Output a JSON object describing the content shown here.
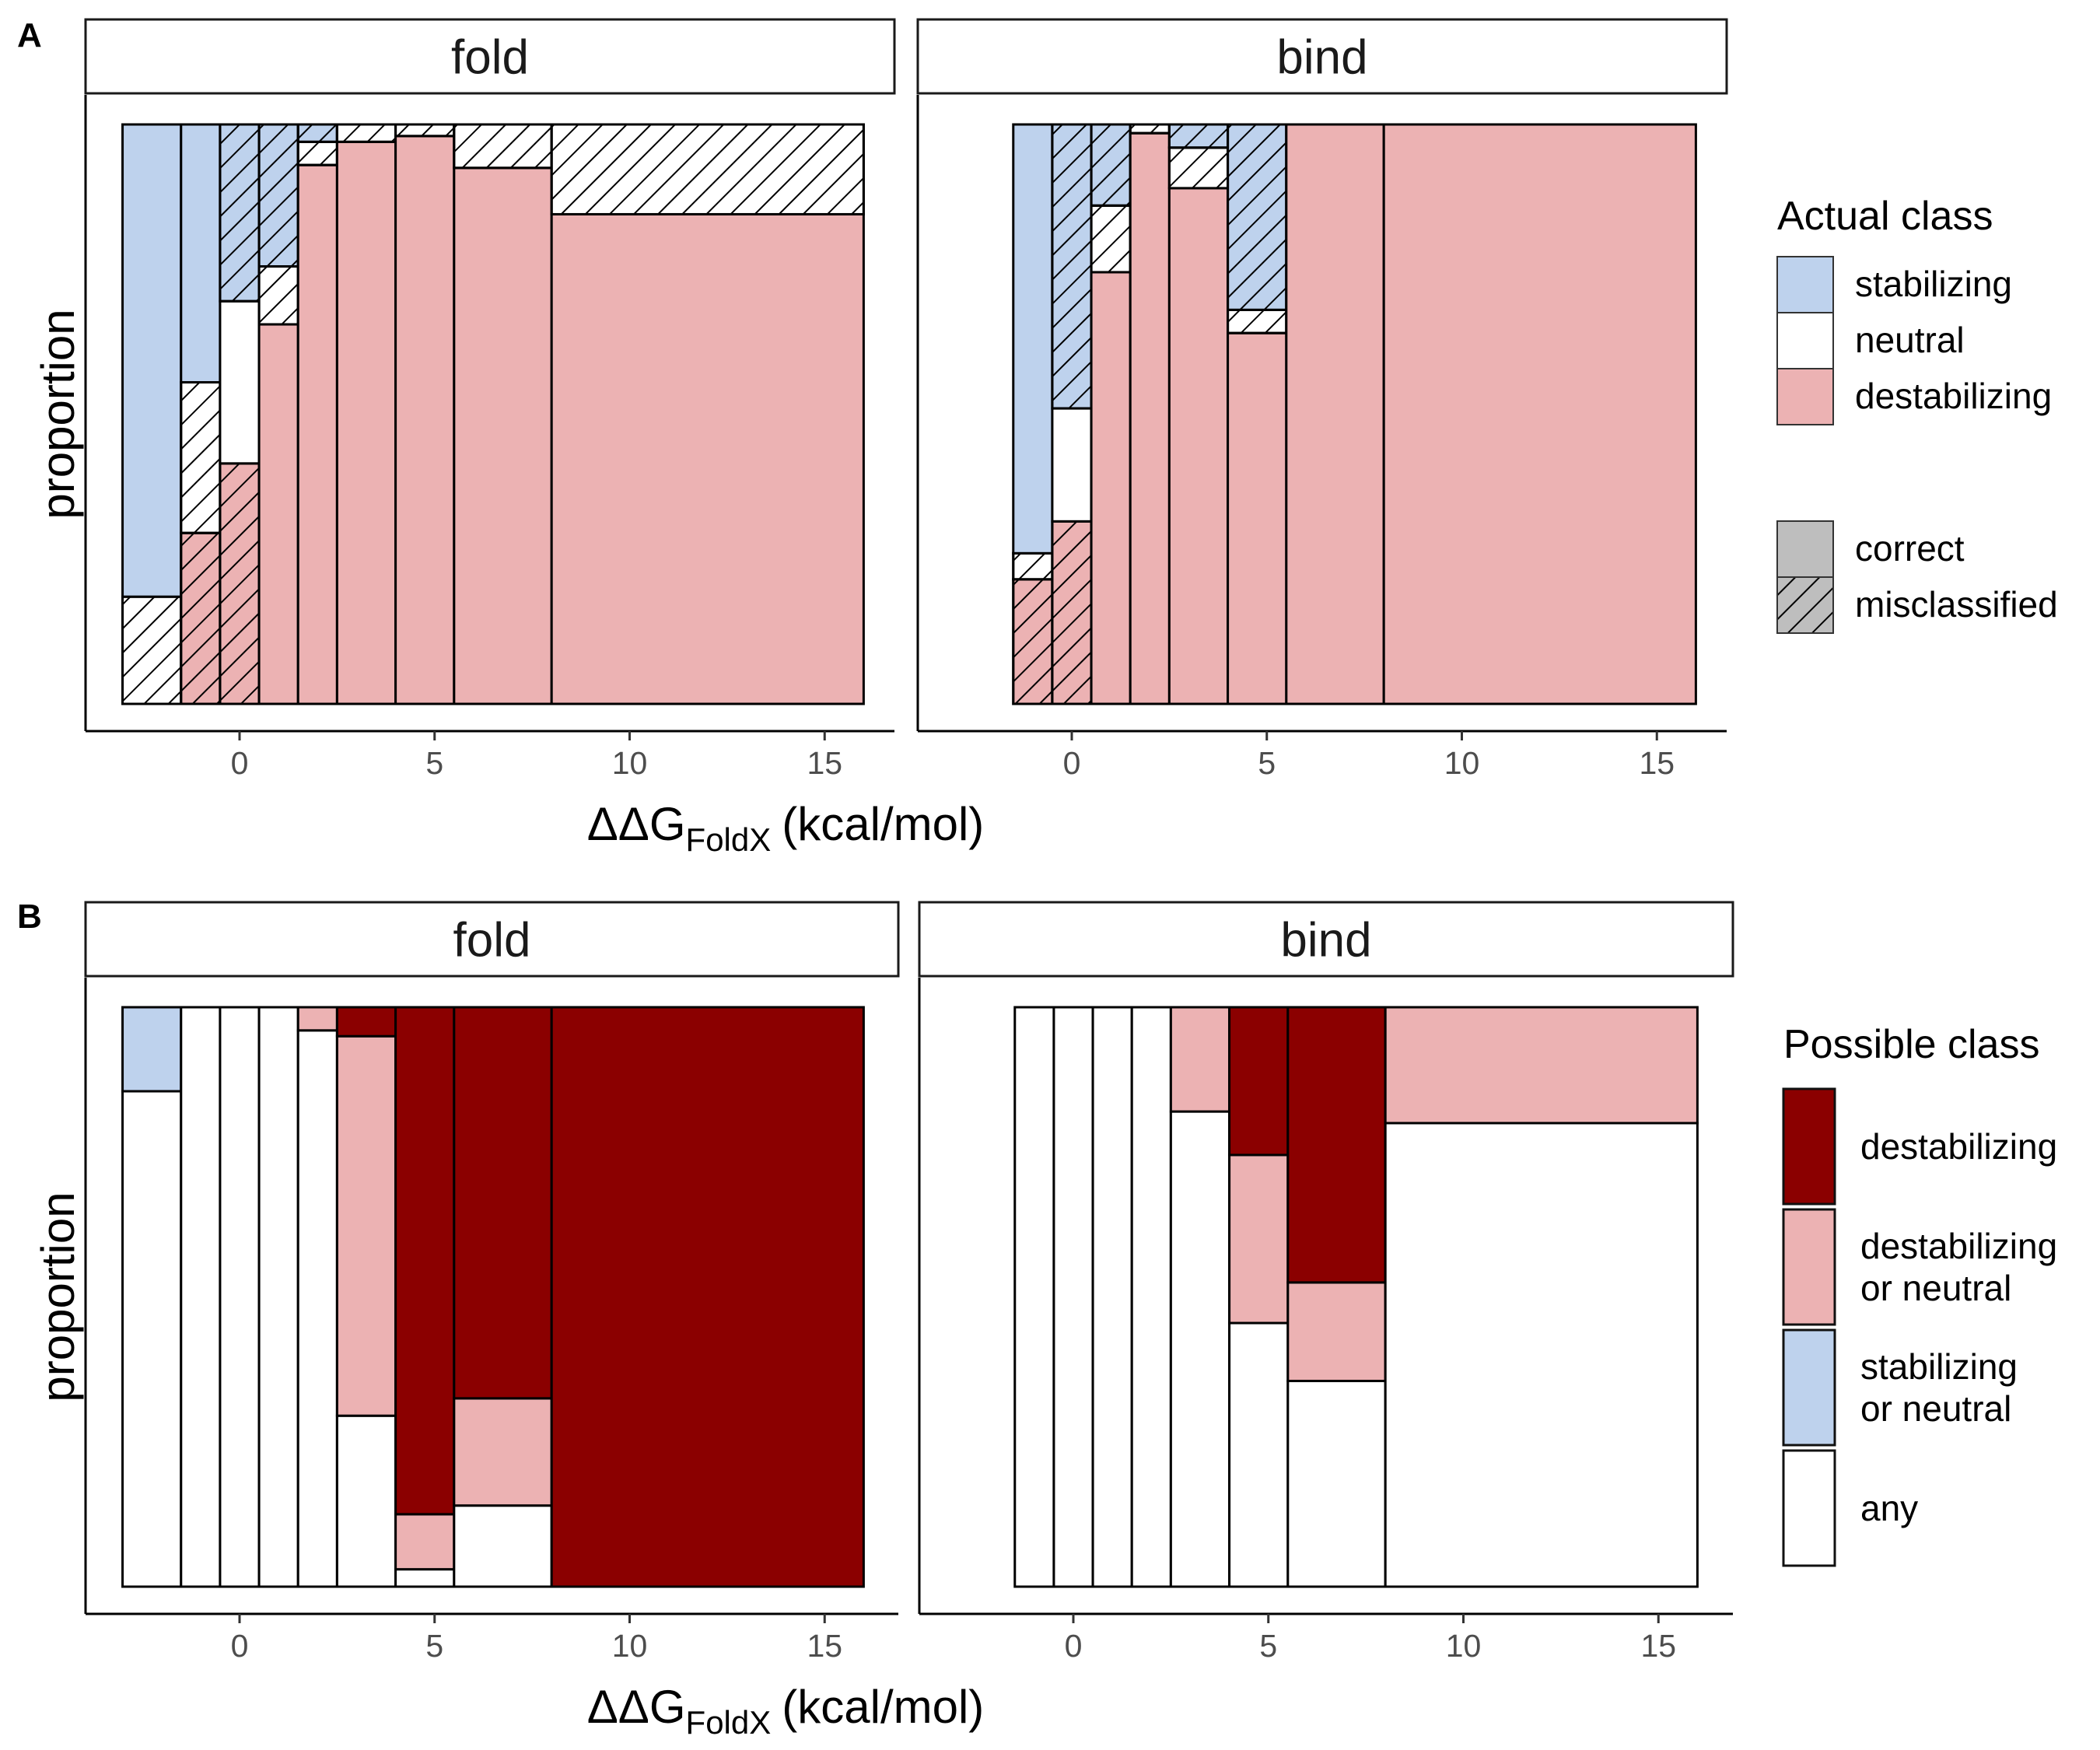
{
  "chart_data": [
    {
      "tag": "A",
      "type": "mosaic",
      "panels": [
        {
          "strip": "fold",
          "bins": [
            {
              "x": [
                -3,
                -1.5
              ],
              "segments": [
                {
                  "cls": "destabilizing",
                  "frac": 0.0,
                  "hatch": false
                },
                {
                  "cls": "neutral",
                  "frac": 0.185,
                  "hatch": true
                },
                {
                  "cls": "stabilizing",
                  "frac": 0.815,
                  "hatch": false
                }
              ]
            },
            {
              "x": [
                -1.5,
                -0.5
              ],
              "segments": [
                {
                  "cls": "destabilizing",
                  "frac": 0.295,
                  "hatch": true
                },
                {
                  "cls": "neutral",
                  "frac": 0.26,
                  "hatch": true
                },
                {
                  "cls": "stabilizing",
                  "frac": 0.445,
                  "hatch": false
                }
              ]
            },
            {
              "x": [
                -0.5,
                0.5
              ],
              "segments": [
                {
                  "cls": "destabilizing",
                  "frac": 0.415,
                  "hatch": true
                },
                {
                  "cls": "neutral",
                  "frac": 0.28,
                  "hatch": false
                },
                {
                  "cls": "stabilizing",
                  "frac": 0.305,
                  "hatch": true
                }
              ]
            },
            {
              "x": [
                0.5,
                1.5
              ],
              "segments": [
                {
                  "cls": "destabilizing",
                  "frac": 0.655,
                  "hatch": false
                },
                {
                  "cls": "neutral",
                  "frac": 0.1,
                  "hatch": true
                },
                {
                  "cls": "stabilizing",
                  "frac": 0.245,
                  "hatch": true
                }
              ]
            },
            {
              "x": [
                1.5,
                2.5
              ],
              "segments": [
                {
                  "cls": "destabilizing",
                  "frac": 0.93,
                  "hatch": false
                },
                {
                  "cls": "neutral",
                  "frac": 0.04,
                  "hatch": true
                },
                {
                  "cls": "stabilizing",
                  "frac": 0.03,
                  "hatch": true
                }
              ]
            },
            {
              "x": [
                2.5,
                4
              ],
              "segments": [
                {
                  "cls": "destabilizing",
                  "frac": 0.97,
                  "hatch": false
                },
                {
                  "cls": "neutral",
                  "frac": 0.03,
                  "hatch": true
                }
              ]
            },
            {
              "x": [
                4,
                5.5
              ],
              "segments": [
                {
                  "cls": "destabilizing",
                  "frac": 0.98,
                  "hatch": false
                },
                {
                  "cls": "neutral",
                  "frac": 0.02,
                  "hatch": true
                }
              ]
            },
            {
              "x": [
                5.5,
                8
              ],
              "segments": [
                {
                  "cls": "destabilizing",
                  "frac": 0.925,
                  "hatch": false
                },
                {
                  "cls": "neutral",
                  "frac": 0.075,
                  "hatch": true
                }
              ]
            },
            {
              "x": [
                8,
                16
              ],
              "segments": [
                {
                  "cls": "destabilizing",
                  "frac": 0.845,
                  "hatch": false
                },
                {
                  "cls": "neutral",
                  "frac": 0.155,
                  "hatch": true
                }
              ]
            }
          ]
        },
        {
          "strip": "bind",
          "bins": [
            {
              "x": [
                -1.5,
                -0.5
              ],
              "segments": [
                {
                  "cls": "destabilizing",
                  "frac": 0.215,
                  "hatch": true
                },
                {
                  "cls": "neutral",
                  "frac": 0.045,
                  "hatch": true
                },
                {
                  "cls": "stabilizing",
                  "frac": 0.74,
                  "hatch": false
                }
              ]
            },
            {
              "x": [
                -0.5,
                0.5
              ],
              "segments": [
                {
                  "cls": "destabilizing",
                  "frac": 0.315,
                  "hatch": true
                },
                {
                  "cls": "neutral",
                  "frac": 0.195,
                  "hatch": false
                },
                {
                  "cls": "stabilizing",
                  "frac": 0.49,
                  "hatch": true
                }
              ]
            },
            {
              "x": [
                0.5,
                1.5
              ],
              "segments": [
                {
                  "cls": "destabilizing",
                  "frac": 0.745,
                  "hatch": false
                },
                {
                  "cls": "neutral",
                  "frac": 0.115,
                  "hatch": true
                },
                {
                  "cls": "stabilizing",
                  "frac": 0.14,
                  "hatch": true
                }
              ]
            },
            {
              "x": [
                1.5,
                2.5
              ],
              "segments": [
                {
                  "cls": "destabilizing",
                  "frac": 0.985,
                  "hatch": false
                },
                {
                  "cls": "neutral",
                  "frac": 0.015,
                  "hatch": true
                }
              ]
            },
            {
              "x": [
                2.5,
                4
              ],
              "segments": [
                {
                  "cls": "destabilizing",
                  "frac": 0.89,
                  "hatch": false
                },
                {
                  "cls": "neutral",
                  "frac": 0.07,
                  "hatch": true
                },
                {
                  "cls": "stabilizing",
                  "frac": 0.04,
                  "hatch": true
                }
              ]
            },
            {
              "x": [
                4,
                5.5
              ],
              "segments": [
                {
                  "cls": "destabilizing",
                  "frac": 0.64,
                  "hatch": false
                },
                {
                  "cls": "neutral",
                  "frac": 0.04,
                  "hatch": true
                },
                {
                  "cls": "stabilizing",
                  "frac": 0.32,
                  "hatch": true
                }
              ]
            },
            {
              "x": [
                5.5,
                8
              ],
              "segments": [
                {
                  "cls": "destabilizing",
                  "frac": 1.0,
                  "hatch": false
                }
              ]
            },
            {
              "x": [
                8,
                16
              ],
              "segments": [
                {
                  "cls": "destabilizing",
                  "frac": 1.0,
                  "hatch": false
                }
              ]
            }
          ]
        }
      ],
      "xlabel": "ΔΔG",
      "xlabel_sub": "FoldX",
      "xlabel_unit": "(kcal/mol)",
      "ylabel": "proportion",
      "xticks": [
        0,
        5,
        10,
        15
      ],
      "xlim": [
        -4,
        17
      ],
      "legend": {
        "title": "Actual class",
        "fill_items": [
          {
            "label": "stabilizing",
            "key": "stabilizing"
          },
          {
            "label": "neutral",
            "key": "neutral"
          },
          {
            "label": "destabilizing",
            "key": "destabilizing"
          }
        ],
        "pattern_items": [
          {
            "label": "correct",
            "hatch": false
          },
          {
            "label": "misclassified",
            "hatch": true
          }
        ],
        "placement": "right"
      }
    },
    {
      "tag": "B",
      "type": "mosaic",
      "panels": [
        {
          "strip": "fold",
          "bins": [
            {
              "x": [
                -3,
                -1.5
              ],
              "segments": [
                {
                  "cls": "any",
                  "frac": 0.855
                },
                {
                  "cls": "stab_or_neutral",
                  "frac": 0.145
                }
              ]
            },
            {
              "x": [
                -1.5,
                -0.5
              ],
              "segments": [
                {
                  "cls": "any",
                  "frac": 1.0
                }
              ]
            },
            {
              "x": [
                -0.5,
                0.5
              ],
              "segments": [
                {
                  "cls": "any",
                  "frac": 1.0
                }
              ]
            },
            {
              "x": [
                0.5,
                1.5
              ],
              "segments": [
                {
                  "cls": "any",
                  "frac": 1.0
                }
              ]
            },
            {
              "x": [
                1.5,
                2.5
              ],
              "segments": [
                {
                  "cls": "any",
                  "frac": 0.96
                },
                {
                  "cls": "destab_or_neutral",
                  "frac": 0.04
                }
              ]
            },
            {
              "x": [
                2.5,
                4
              ],
              "segments": [
                {
                  "cls": "any",
                  "frac": 0.295
                },
                {
                  "cls": "destab_or_neutral",
                  "frac": 0.655
                },
                {
                  "cls": "destab",
                  "frac": 0.05
                }
              ]
            },
            {
              "x": [
                4,
                5.5
              ],
              "segments": [
                {
                  "cls": "any",
                  "frac": 0.03
                },
                {
                  "cls": "destab_or_neutral",
                  "frac": 0.095
                },
                {
                  "cls": "destab",
                  "frac": 0.875
                }
              ]
            },
            {
              "x": [
                5.5,
                8
              ],
              "segments": [
                {
                  "cls": "any",
                  "frac": 0.14
                },
                {
                  "cls": "destab_or_neutral",
                  "frac": 0.185
                },
                {
                  "cls": "destab",
                  "frac": 0.675
                }
              ]
            },
            {
              "x": [
                8,
                16
              ],
              "segments": [
                {
                  "cls": "destab",
                  "frac": 1.0
                }
              ]
            }
          ]
        },
        {
          "strip": "bind",
          "bins": [
            {
              "x": [
                -1.5,
                -0.5
              ],
              "segments": [
                {
                  "cls": "any",
                  "frac": 1.0
                }
              ]
            },
            {
              "x": [
                -0.5,
                0.5
              ],
              "segments": [
                {
                  "cls": "any",
                  "frac": 1.0
                }
              ]
            },
            {
              "x": [
                0.5,
                1.5
              ],
              "segments": [
                {
                  "cls": "any",
                  "frac": 1.0
                }
              ]
            },
            {
              "x": [
                1.5,
                2.5
              ],
              "segments": [
                {
                  "cls": "any",
                  "frac": 1.0
                }
              ]
            },
            {
              "x": [
                2.5,
                4
              ],
              "segments": [
                {
                  "cls": "any",
                  "frac": 0.82
                },
                {
                  "cls": "destab_or_neutral",
                  "frac": 0.18
                }
              ]
            },
            {
              "x": [
                4,
                5.5
              ],
              "segments": [
                {
                  "cls": "any",
                  "frac": 0.455
                },
                {
                  "cls": "destab_or_neutral",
                  "frac": 0.29
                },
                {
                  "cls": "destab",
                  "frac": 0.255
                }
              ]
            },
            {
              "x": [
                5.5,
                8
              ],
              "segments": [
                {
                  "cls": "any",
                  "frac": 0.355
                },
                {
                  "cls": "destab_or_neutral",
                  "frac": 0.17
                },
                {
                  "cls": "destab",
                  "frac": 0.475
                }
              ]
            },
            {
              "x": [
                8,
                16
              ],
              "segments": [
                {
                  "cls": "any",
                  "frac": 0.8
                },
                {
                  "cls": "destab_or_neutral",
                  "frac": 0.2
                }
              ]
            }
          ]
        }
      ],
      "xlabel": "ΔΔG",
      "xlabel_sub": "FoldX",
      "xlabel_unit": "(kcal/mol)",
      "ylabel": "proportion",
      "xticks": [
        0,
        5,
        10,
        15
      ],
      "xlim": [
        -4,
        17
      ],
      "legend": {
        "title": "Possible class",
        "fill_items": [
          {
            "label": [
              "destabilizing"
            ],
            "key": "destab"
          },
          {
            "label": [
              "destabilizing",
              "or neutral"
            ],
            "key": "destab_or_neutral"
          },
          {
            "label": [
              "stabilizing",
              "or neutral"
            ],
            "key": "stab_or_neutral"
          },
          {
            "label": [
              "any"
            ],
            "key": "any"
          }
        ],
        "placement": "right"
      }
    }
  ],
  "colors": {
    "stabilizing": "#bed2ed",
    "neutral": "#ffffff",
    "destabilizing": "#ecb2b3",
    "destab": "#8b0000",
    "destab_or_neutral": "#ecb2b3",
    "stab_or_neutral": "#bed2ed",
    "any": "#ffffff",
    "pattern_key": "#bebebe"
  }
}
